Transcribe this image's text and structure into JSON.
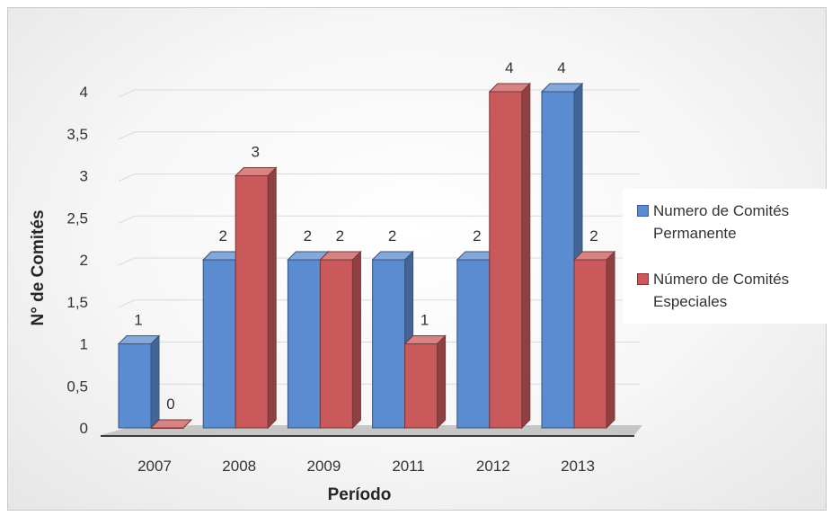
{
  "chart_data": {
    "type": "bar",
    "categories": [
      "2007",
      "2008",
      "2009",
      "2011",
      "2012",
      "2013"
    ],
    "series": [
      {
        "name": "Numero de Comités Permanente",
        "values": [
          1,
          2,
          2,
          2,
          2,
          4
        ],
        "color": "#5b8bd0"
      },
      {
        "name": "Número de Comités Especiales",
        "values": [
          0,
          3,
          2,
          1,
          4,
          2
        ],
        "color": "#c9595b"
      }
    ],
    "xlabel": "Período",
    "ylabel": "N° de Comités",
    "ylim": [
      0,
      4
    ],
    "yticks": [
      "0",
      "0,5",
      "1",
      "1,5",
      "2",
      "2,5",
      "3",
      "3,5",
      "4"
    ],
    "grid": true,
    "legend_position": "right",
    "style": "3d-clustered-column"
  }
}
